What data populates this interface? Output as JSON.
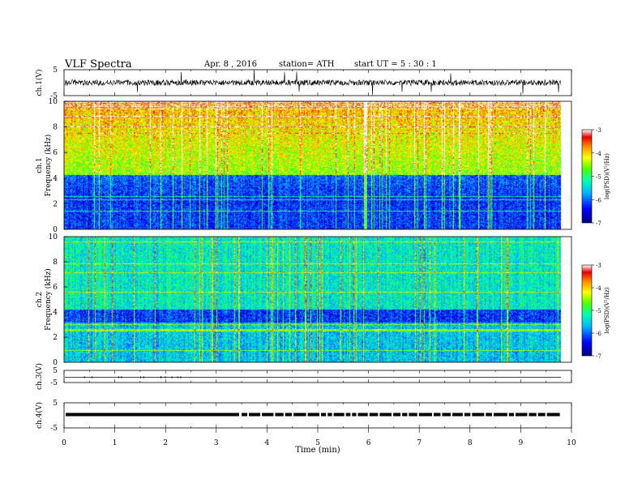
{
  "header": {
    "title": "VLF Spectra",
    "date": "Apr. 8 , 2016",
    "station": "station= ATH",
    "start": "start UT = 5 : 30 : 1"
  },
  "chart_data": [
    {
      "type": "line",
      "name": "ch1-waveform",
      "ylabel": "ch.1(V)",
      "ylim": [
        -5,
        5
      ],
      "yticks": [
        "5",
        "-5"
      ],
      "xlim": [
        0,
        10
      ]
    },
    {
      "type": "heatmap",
      "name": "ch1-spectrogram",
      "ylabel_channel": "ch.1",
      "ylabel": "Frequency (kHz)",
      "ylim": [
        0,
        10
      ],
      "yticks": [
        "0",
        "2",
        "4",
        "6",
        "8",
        "10"
      ],
      "xlim": [
        0,
        10
      ],
      "colorbar": {
        "label": "log(PSD)(V²/Hz)",
        "range": [
          -7,
          -3
        ],
        "ticks": [
          "-7",
          "-6",
          "-5",
          "-4",
          "-3"
        ]
      }
    },
    {
      "type": "heatmap",
      "name": "ch2-spectrogram",
      "ylabel_channel": "ch.2",
      "ylabel": "Frequency (kHz)",
      "ylim": [
        0,
        10
      ],
      "yticks": [
        "0",
        "2",
        "4",
        "6",
        "8",
        "10"
      ],
      "xlim": [
        0,
        10
      ],
      "colorbar": {
        "label": "log(PSD)(V²/Hz)",
        "range": [
          -7,
          -3
        ],
        "ticks": [
          "-7",
          "-6",
          "-5",
          "-4",
          "-3"
        ]
      }
    },
    {
      "type": "line",
      "name": "ch3-waveform",
      "ylabel": "ch.3(V)",
      "ylim": [
        -5,
        5
      ],
      "yticks": [
        "5",
        "-5"
      ],
      "xlim": [
        0,
        10
      ]
    },
    {
      "type": "line",
      "name": "ch4-waveform",
      "ylabel": "ch.4(V)",
      "ylim": [
        -5,
        5
      ],
      "yticks": [
        "5",
        "-5"
      ],
      "xlim": [
        0,
        10
      ],
      "xlabel": "Time (min)",
      "xticks": [
        "0",
        "1",
        "2",
        "3",
        "4",
        "5",
        "6",
        "7",
        "8",
        "9",
        "10"
      ]
    }
  ]
}
